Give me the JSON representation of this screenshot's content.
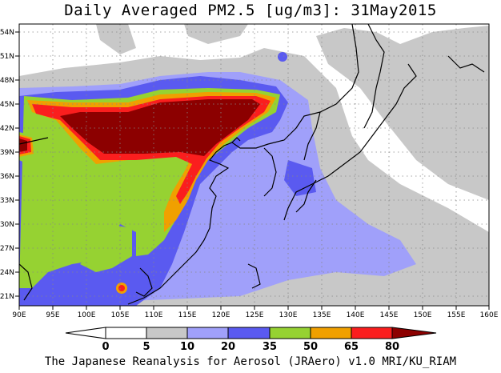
{
  "title": "Daily Averaged PM2.5 [ug/m3]: 31May2015",
  "credit": "The Japanese Reanalysis for Aerosol (JRAero) v1.0 MRI/KU_RIAM",
  "map": {
    "lon_range": [
      90,
      160
    ],
    "lat_range": [
      20,
      55
    ],
    "lon_ticks": [
      "90E",
      "95E",
      "100E",
      "105E",
      "110E",
      "115E",
      "120E",
      "125E",
      "130E",
      "135E",
      "140E",
      "145E",
      "150E",
      "155E",
      "160E"
    ],
    "lat_ticks": [
      "21N",
      "24N",
      "27N",
      "30N",
      "33N",
      "36N",
      "39N",
      "42N",
      "45N",
      "48N",
      "51N",
      "54N"
    ],
    "grid": true,
    "coastlines": true
  },
  "legend": {
    "labels": [
      "0",
      "5",
      "10",
      "20",
      "35",
      "50",
      "65",
      "80"
    ],
    "colors": [
      "#ffffff",
      "#c8c8c8",
      "#a0a0fa",
      "#5a5af0",
      "#96d232",
      "#f0a000",
      "#fa1e1e",
      "#8c0000"
    ]
  }
}
